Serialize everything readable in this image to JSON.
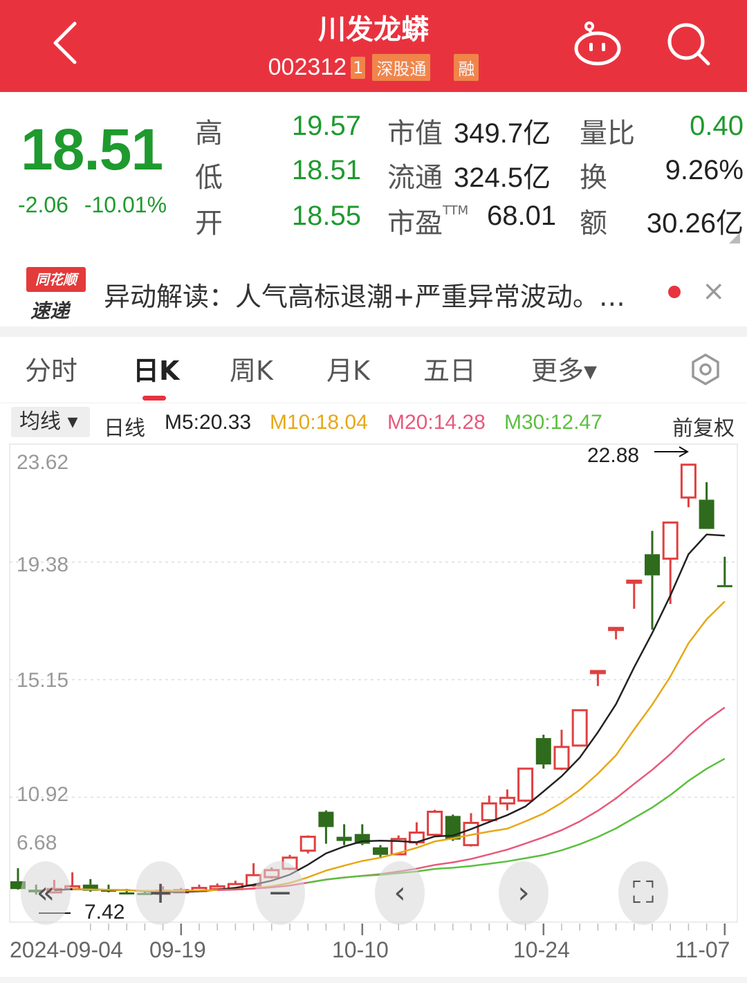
{
  "header": {
    "title": "川发龙蟒",
    "code": "002312",
    "badge_num": "1",
    "badge_sgt": "深股通",
    "badge_margin": "融",
    "back_icon": "chevron-left",
    "robot_icon": "robot",
    "search_icon": "search"
  },
  "quote": {
    "price": "18.51",
    "change": "-2.06",
    "change_pct": "-10.01%",
    "rows": [
      {
        "l1": "高",
        "v1": "19.57",
        "l2": "市值",
        "sup": "",
        "v2": "349.7亿",
        "l3": "量比",
        "v3": "0.40"
      },
      {
        "l1": "低",
        "v1": "18.51",
        "l2": "流通",
        "sup": "",
        "v2": "324.5亿",
        "l3": "换",
        "v3": "9.26%"
      },
      {
        "l1": "开",
        "v1": "18.55",
        "l2": "市盈",
        "sup": "TTM",
        "v2": "68.01",
        "l3": "额",
        "v3": "30.26亿"
      }
    ],
    "colors": {
      "down": "#1E9A2E",
      "up": "#E8333F"
    }
  },
  "news": {
    "logo_top": "同花顺",
    "logo_bottom": "速递",
    "text": "异动解读：人气高标退潮+严重异常波动。…",
    "close": "×"
  },
  "tabs": [
    {
      "label": "分时"
    },
    {
      "label": "日K",
      "active": true
    },
    {
      "label": "周K"
    },
    {
      "label": "月K"
    },
    {
      "label": "五日"
    },
    {
      "label": "更多▾"
    }
  ],
  "ma_bar": {
    "selector": "均线 ▾",
    "period": "日线",
    "adjust": "前复权",
    "ma": [
      {
        "label": "M5:20.33",
        "color": "#222222"
      },
      {
        "label": "M10:18.04",
        "color": "#E6A817"
      },
      {
        "label": "M20:14.28",
        "color": "#E8587A"
      },
      {
        "label": "M30:12.47",
        "color": "#5BBF3F"
      }
    ]
  },
  "chart_data": {
    "type": "candlestick",
    "ylim": [
      6.43,
      23.62
    ],
    "y_ticks": [
      "23.62",
      "19.38",
      "15.15",
      "10.92",
      "6.68"
    ],
    "x_tick_labels": [
      "2024-09-04",
      "09-19",
      "10-10",
      "10-24",
      "11-07"
    ],
    "high_marker": "22.88",
    "low_marker": "7.42",
    "up_color": "#E04040",
    "down_color": "#2F6B1C",
    "dates": [
      "09-04",
      "09-05",
      "09-06",
      "09-09",
      "09-10",
      "09-11",
      "09-12",
      "09-13",
      "09-18",
      "09-19",
      "09-20",
      "09-23",
      "09-24",
      "09-25",
      "09-26",
      "09-27",
      "09-30",
      "10-08",
      "10-09",
      "10-10",
      "10-11",
      "10-14",
      "10-15",
      "10-16",
      "10-17",
      "10-18",
      "10-21",
      "10-22",
      "10-23",
      "10-24",
      "10-25",
      "10-28",
      "10-29",
      "10-30",
      "10-31",
      "11-01",
      "11-04",
      "11-05",
      "11-06",
      "11-07"
    ],
    "ohlc": [
      [
        7.9,
        8.37,
        7.6,
        7.62
      ],
      [
        7.6,
        7.78,
        7.42,
        7.5
      ],
      [
        7.5,
        7.95,
        7.46,
        7.62
      ],
      [
        7.62,
        8.22,
        7.58,
        7.72
      ],
      [
        7.78,
        7.98,
        7.52,
        7.56
      ],
      [
        7.6,
        7.78,
        7.5,
        7.55
      ],
      [
        7.5,
        7.62,
        7.43,
        7.45
      ],
      [
        7.48,
        7.55,
        7.44,
        7.45
      ],
      [
        7.45,
        7.72,
        7.43,
        7.56
      ],
      [
        7.5,
        7.66,
        7.46,
        7.58
      ],
      [
        7.55,
        7.78,
        7.52,
        7.66
      ],
      [
        7.62,
        7.82,
        7.58,
        7.72
      ],
      [
        7.62,
        7.92,
        7.6,
        7.8
      ],
      [
        7.75,
        8.55,
        7.7,
        8.12
      ],
      [
        8.05,
        8.4,
        8.0,
        8.3
      ],
      [
        8.35,
        8.85,
        8.3,
        8.75
      ],
      [
        9.0,
        9.55,
        8.9,
        9.5
      ],
      [
        10.4,
        10.45,
        9.25,
        9.85
      ],
      [
        9.5,
        9.95,
        9.2,
        9.35
      ],
      [
        9.6,
        9.95,
        9.2,
        9.25
      ],
      [
        9.12,
        9.2,
        8.72,
        8.85
      ],
      [
        8.87,
        9.55,
        8.85,
        9.42
      ],
      [
        9.3,
        10.02,
        9.2,
        9.65
      ],
      [
        9.57,
        10.47,
        9.55,
        10.4
      ],
      [
        10.25,
        10.3,
        9.35,
        9.4
      ],
      [
        9.2,
        10.35,
        9.15,
        10.0
      ],
      [
        10.1,
        10.98,
        10.05,
        10.7
      ],
      [
        10.7,
        11.2,
        10.45,
        10.9
      ],
      [
        10.8,
        11.95,
        10.75,
        11.95
      ],
      [
        13.05,
        13.17,
        11.95,
        12.1
      ],
      [
        11.95,
        13.35,
        11.9,
        12.73
      ],
      [
        12.78,
        14.05,
        12.75,
        14.05
      ],
      [
        15.46,
        15.46,
        14.92,
        15.46
      ],
      [
        17.01,
        17.01,
        16.6,
        17.01
      ],
      [
        18.71,
        18.71,
        17.7,
        18.71
      ],
      [
        19.66,
        20.5,
        16.95,
        18.9
      ],
      [
        19.5,
        20.8,
        17.87,
        20.8
      ],
      [
        21.7,
        22.88,
        21.35,
        22.88
      ],
      [
        21.62,
        22.25,
        20.57,
        20.57
      ],
      [
        18.55,
        19.57,
        18.51,
        18.51
      ]
    ],
    "ma_periods": [
      5,
      10,
      20,
      30
    ]
  },
  "overlay_buttons": [
    "«",
    "+",
    "−",
    "‹",
    "›",
    "⛶"
  ]
}
